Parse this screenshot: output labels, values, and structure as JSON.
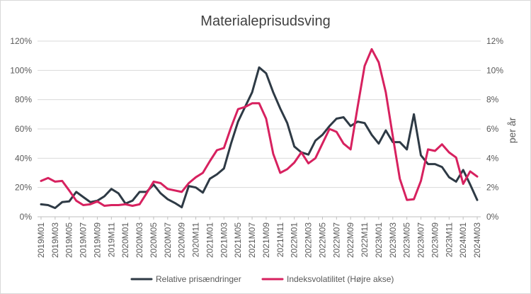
{
  "chart_data": {
    "type": "line",
    "title": "Materialeprisudsving",
    "xlabel": "",
    "ylabel": "",
    "y2label": "per år",
    "ylim": [
      0,
      120
    ],
    "y2lim": [
      0,
      12
    ],
    "ytick_labels": [
      "0%",
      "20%",
      "40%",
      "60%",
      "80%",
      "100%",
      "120%"
    ],
    "y2tick_labels": [
      "0%",
      "2%",
      "4%",
      "6%",
      "8%",
      "10%",
      "12%"
    ],
    "grid": true,
    "legend": "bottom",
    "x": [
      "2019M01",
      "2019M02",
      "2019M03",
      "2019M04",
      "2019M05",
      "2019M06",
      "2019M07",
      "2019M08",
      "2019M09",
      "2019M10",
      "2019M11",
      "2019M12",
      "2020M01",
      "2020M02",
      "2020M03",
      "2020M04",
      "2020M05",
      "2020M06",
      "2020M07",
      "2020M08",
      "2020M09",
      "2020M10",
      "2020M11",
      "2020M12",
      "2021M01",
      "2021M02",
      "2021M03",
      "2021M04",
      "2021M05",
      "2021M06",
      "2021M07",
      "2021M08",
      "2021M09",
      "2021M10",
      "2021M11",
      "2021M12",
      "2022M01",
      "2022M02",
      "2022M03",
      "2022M04",
      "2022M05",
      "2022M06",
      "2022M07",
      "2022M08",
      "2022M09",
      "2022M10",
      "2022M11",
      "2022M12",
      "2023M01",
      "2023M02",
      "2023M03",
      "2023M04",
      "2023M05",
      "2023M06",
      "2023M07",
      "2023M08",
      "2023M09",
      "2023M10",
      "2023M11",
      "2023M12",
      "2024M01",
      "2024M02",
      "2024M03"
    ],
    "xtick_labels": [
      "2019M01",
      "2019M03",
      "2019M05",
      "2019M07",
      "2019M09",
      "2019M11",
      "2020M01",
      "2020M03",
      "2020M05",
      "2020M07",
      "2020M09",
      "2020M11",
      "2021M01",
      "2021M03",
      "2021M05",
      "2021M07",
      "2021M09",
      "2021M11",
      "2022M01",
      "2022M03",
      "2022M05",
      "2022M07",
      "2022M09",
      "2022M11",
      "2023M01",
      "2023M03",
      "2023M05",
      "2023M07",
      "2023M09",
      "2023M11",
      "2024M01",
      "2024M03"
    ],
    "series": [
      {
        "name": "Relative prisændringer",
        "axis": "left",
        "color": "#2e3a45",
        "values": [
          8.5,
          8,
          6,
          10,
          10.5,
          17,
          13.5,
          10,
          11,
          14,
          19,
          16,
          9,
          11,
          17,
          17,
          22,
          16,
          12,
          9.5,
          6.5,
          21,
          20,
          16.5,
          26,
          29,
          33,
          50,
          65,
          75,
          85,
          102,
          98,
          85,
          74,
          64,
          48,
          44,
          42.5,
          52,
          56,
          62,
          67,
          68,
          62,
          65,
          64,
          56,
          50,
          59,
          51,
          51,
          46,
          70,
          42,
          36,
          36,
          34,
          27,
          24,
          32,
          22,
          11.5
        ]
      },
      {
        "name": "Indeksvolatilitet (Højre akse)",
        "axis": "right",
        "color": "#d7215f",
        "values": [
          2.45,
          2.65,
          2.4,
          2.45,
          1.8,
          1.1,
          0.8,
          0.85,
          1.05,
          0.75,
          0.8,
          0.8,
          0.85,
          0.75,
          0.85,
          1.6,
          2.4,
          2.3,
          1.9,
          1.8,
          1.7,
          2.3,
          2.7,
          3.0,
          3.8,
          4.55,
          4.7,
          6.1,
          7.35,
          7.5,
          7.75,
          7.75,
          6.7,
          4.3,
          3.0,
          3.25,
          3.7,
          4.4,
          3.65,
          4.0,
          5.0,
          6.0,
          5.8,
          5.0,
          4.6,
          7.5,
          10.3,
          11.45,
          10.55,
          8.5,
          5.5,
          2.6,
          1.15,
          1.2,
          2.45,
          4.6,
          4.5,
          4.95,
          4.4,
          4.05,
          2.25,
          3.1,
          2.75
        ]
      }
    ]
  }
}
